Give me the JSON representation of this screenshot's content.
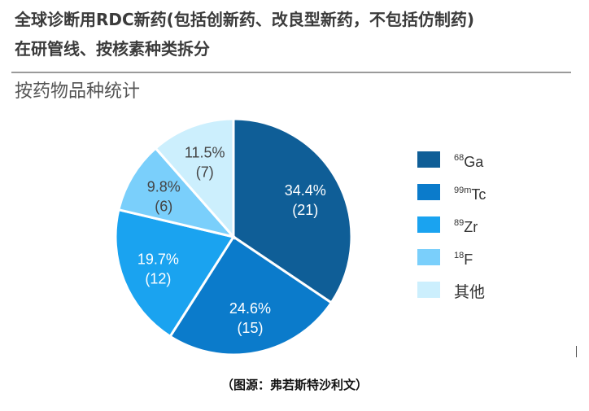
{
  "header": {
    "title_line1": "全球诊断用RDC新药(包括创新药、改良型新药，不包括仿制药)",
    "title_line2": "在研管线、按核素种类拆分",
    "subtitle": "按药物品种统计"
  },
  "chart_data": {
    "type": "pie",
    "title": "",
    "start_angle_deg": 0,
    "direction": "clockwise",
    "legend_position": "right",
    "slices": [
      {
        "sup": "68",
        "base": "Ga",
        "value": 21,
        "percent_label": "34.4%",
        "count_label": "(21)",
        "color": "#0F5E97",
        "label_dark": false
      },
      {
        "sup": "99m",
        "base": "Tc",
        "value": 15,
        "percent_label": "24.6%",
        "count_label": "(15)",
        "color": "#0B7BCB",
        "label_dark": false
      },
      {
        "sup": "89",
        "base": "Zr",
        "value": 12,
        "percent_label": "19.7%",
        "count_label": "(12)",
        "color": "#1AA3F0",
        "label_dark": false
      },
      {
        "sup": "18",
        "base": "F",
        "value": 6,
        "percent_label": "9.8%",
        "count_label": "(6)",
        "color": "#7ACFFB",
        "label_dark": true
      },
      {
        "sup": "",
        "base": "其他",
        "value": 7,
        "percent_label": "11.5%",
        "count_label": "(7)",
        "color": "#CCEFFD",
        "label_dark": true
      }
    ]
  },
  "footer": {
    "source": "（图源：弗若斯特沙利文）"
  }
}
